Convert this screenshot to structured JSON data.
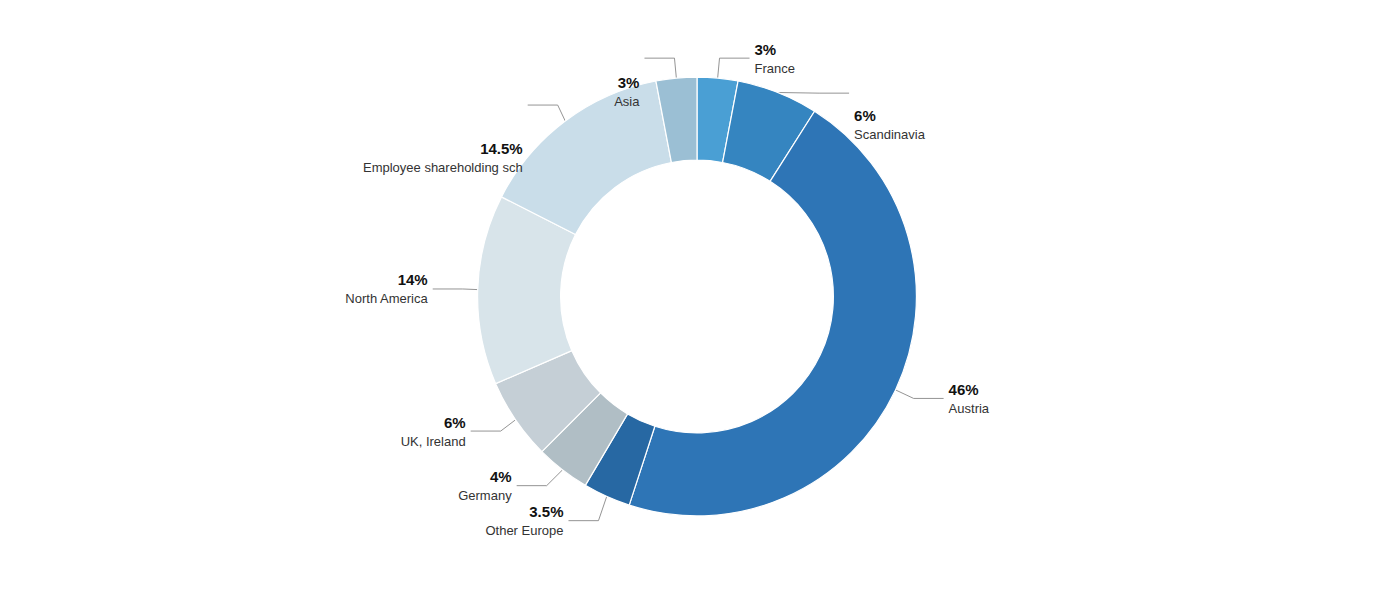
{
  "chart_data": {
    "type": "donut",
    "categories": [
      "France",
      "Scandinavia",
      "Austria",
      "Other Europe",
      "Germany",
      "UK, Ireland",
      "North America",
      "Employee shareholding sch",
      "Asia"
    ],
    "values": [
      3,
      6,
      46,
      3.5,
      4,
      6,
      14,
      14.5,
      3
    ],
    "value_labels": [
      "3%",
      "6%",
      "46%",
      "3.5%",
      "4%",
      "6%",
      "14%",
      "14.5%",
      "3%"
    ],
    "colors": [
      "#4a9fd4",
      "#3585c0",
      "#2e75b6",
      "#2768a3",
      "#b0bec5",
      "#c5cfd6",
      "#d8e4ea",
      "#c9dde9",
      "#9bbfd4"
    ],
    "data_labels": true
  }
}
